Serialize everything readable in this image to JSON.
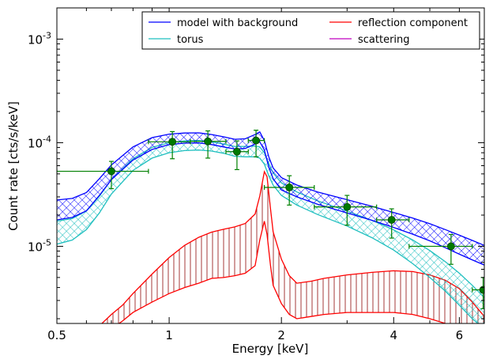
{
  "chart_data": {
    "type": "line",
    "xlabel": "Energy [keV]",
    "ylabel": "Count rate [cts/s/keV]",
    "x_scale": "log",
    "y_scale": "log",
    "xlim": [
      0.5,
      7.0
    ],
    "ylim": [
      1.8e-06,
      0.002
    ],
    "x_ticks": [
      {
        "value": 0.5,
        "label": "0.5"
      },
      {
        "value": 1,
        "label": "1"
      },
      {
        "value": 2,
        "label": "2"
      },
      {
        "value": 4,
        "label": "4"
      },
      {
        "value": 6,
        "label": "6"
      }
    ],
    "y_ticks": [
      {
        "value": 1e-05,
        "base": "10",
        "exp": "-5"
      },
      {
        "value": 0.0001,
        "base": "10",
        "exp": "-4"
      },
      {
        "value": 0.001,
        "base": "10",
        "exp": "-3"
      }
    ],
    "legend": {
      "placement": "top-right",
      "entries": [
        {
          "label": "model with background",
          "color": "#0000ff"
        },
        {
          "label": "reflection component",
          "color": "#ff0000"
        },
        {
          "label": "torus",
          "color": "#1fbfbf"
        },
        {
          "label": "scattering",
          "color": "#bf00bf"
        }
      ]
    },
    "series": [
      {
        "name": "model with background",
        "color": "#0000ff",
        "x": [
          0.5,
          0.55,
          0.6,
          0.65,
          0.7,
          0.8,
          0.9,
          1.0,
          1.1,
          1.2,
          1.3,
          1.4,
          1.5,
          1.6,
          1.7,
          1.75,
          1.8,
          1.85,
          1.9,
          2.0,
          2.2,
          2.5,
          3.0,
          3.5,
          4.0,
          4.5,
          5.0,
          5.5,
          6.0,
          6.5,
          7.0
        ],
        "lower": [
          1.8e-05,
          1.9e-05,
          2.2e-05,
          3.1e-05,
          4.4e-05,
          6.8e-05,
          8.6e-05,
          9.6e-05,
          9.9e-05,
          9.95e-05,
          9.6e-05,
          9.1e-05,
          8.7e-05,
          8.8e-05,
          9.7e-05,
          0.000102,
          8.5e-05,
          5.8e-05,
          4.5e-05,
          3.5e-05,
          3e-05,
          2.55e-05,
          2.1e-05,
          1.78e-05,
          1.52e-05,
          1.31e-05,
          1.13e-05,
          9.7e-06,
          8.4e-06,
          7.4e-06,
          6.6e-06
        ],
        "upper": [
          2.8e-05,
          2.9e-05,
          3.3e-05,
          4.5e-05,
          6.1e-05,
          9.1e-05,
          0.000112,
          0.000121,
          0.000124,
          0.0001245,
          0.00012,
          0.000114,
          0.000108,
          0.000109,
          0.00012,
          0.000127,
          0.000105,
          7.3e-05,
          5.7e-05,
          4.6e-05,
          3.9e-05,
          3.35e-05,
          2.82e-05,
          2.43e-05,
          2.12e-05,
          1.87e-05,
          1.65e-05,
          1.45e-05,
          1.28e-05,
          1.14e-05,
          1.02e-05
        ]
      },
      {
        "name": "torus",
        "color": "#1fbfbf",
        "x": [
          0.5,
          0.55,
          0.6,
          0.65,
          0.7,
          0.8,
          0.9,
          1.0,
          1.1,
          1.2,
          1.3,
          1.4,
          1.5,
          1.6,
          1.7,
          1.75,
          1.8,
          1.85,
          1.9,
          2.0,
          2.2,
          2.5,
          3.0,
          3.5,
          4.0,
          4.5,
          5.0,
          5.5,
          6.0,
          6.5,
          7.0
        ],
        "lower": [
          1.05e-05,
          1.15e-05,
          1.45e-05,
          2.1e-05,
          3.2e-05,
          5.4e-05,
          7.1e-05,
          8e-05,
          8.4e-05,
          8.5e-05,
          8.3e-05,
          7.9e-05,
          7.4e-05,
          7.3e-05,
          7.3e-05,
          7.1e-05,
          6.2e-05,
          4.8e-05,
          3.9e-05,
          3.1e-05,
          2.5e-05,
          2.03e-05,
          1.57e-05,
          1.21e-05,
          9.2e-06,
          6.8e-06,
          5e-06,
          3.7e-06,
          2.7e-06,
          2e-06,
          1.6e-06
        ],
        "upper": [
          1.75e-05,
          1.85e-05,
          2.2e-05,
          3.05e-05,
          4.4e-05,
          7e-05,
          9e-05,
          0.0001,
          0.000104,
          0.000105,
          0.000102,
          9.7e-05,
          9.2e-05,
          9.2e-05,
          9.3e-05,
          9.1e-05,
          8e-05,
          6.3e-05,
          5.1e-05,
          4.1e-05,
          3.35e-05,
          2.75e-05,
          2.19e-05,
          1.78e-05,
          1.44e-05,
          1.15e-05,
          9.1e-06,
          7.1e-06,
          5.5e-06,
          4.2e-06,
          3.2e-06
        ]
      },
      {
        "name": "reflection component",
        "color": "#ff0000",
        "x": [
          0.5,
          0.6,
          0.7,
          0.75,
          0.8,
          0.9,
          1.0,
          1.1,
          1.2,
          1.3,
          1.4,
          1.5,
          1.6,
          1.7,
          1.75,
          1.8,
          1.83,
          1.87,
          1.9,
          2.0,
          2.1,
          2.2,
          2.4,
          2.6,
          3.0,
          3.5,
          4.0,
          4.5,
          5.0,
          5.5,
          6.0,
          6.5,
          7.0
        ],
        "lower": [
          8e-07,
          1.1e-06,
          1.6e-06,
          1.9e-06,
          2.3e-06,
          2.9e-06,
          3.5e-06,
          4e-06,
          4.4e-06,
          4.9e-06,
          5e-06,
          5.2e-06,
          5.5e-06,
          6.5e-06,
          1.15e-05,
          1.75e-05,
          1.3e-05,
          6.5e-06,
          4.2e-06,
          2.8e-06,
          2.2e-06,
          2e-06,
          2.1e-06,
          2.2e-06,
          2.3e-06,
          2.3e-06,
          2.3e-06,
          2.2e-06,
          2e-06,
          1.8e-06,
          1.6e-06,
          1.4e-06,
          1.2e-06
        ],
        "upper": [
          8e-07,
          1.3e-06,
          2.2e-06,
          2.7e-06,
          3.5e-06,
          5.4e-06,
          7.8e-06,
          1.02e-05,
          1.22e-05,
          1.37e-05,
          1.46e-05,
          1.54e-05,
          1.66e-05,
          2.05e-05,
          3.05e-05,
          5.25e-05,
          4.7e-05,
          2.3e-05,
          1.38e-05,
          7.5e-06,
          5.2e-06,
          4.4e-06,
          4.6e-06,
          4.9e-06,
          5.3e-06,
          5.6e-06,
          5.8e-06,
          5.7e-06,
          5.3e-06,
          4.7e-06,
          3.9e-06,
          2.9e-06,
          2.1e-06
        ]
      },
      {
        "name": "data",
        "color": "#008000",
        "type": "errorbar",
        "points": [
          {
            "x": 0.7,
            "y": 5.3e-05,
            "xerr": [
              0.5,
              0.88
            ],
            "yerr": [
              3.6e-05,
              6.6e-05
            ]
          },
          {
            "x": 1.02,
            "y": 0.000102,
            "xerr": [
              0.88,
              1.14
            ],
            "yerr": [
              7e-05,
              0.000128
            ]
          },
          {
            "x": 1.27,
            "y": 0.000103,
            "xerr": [
              1.14,
              1.42
            ],
            "yerr": [
              7.1e-05,
              0.00013
            ]
          },
          {
            "x": 1.52,
            "y": 8.2e-05,
            "xerr": [
              1.42,
              1.63
            ],
            "yerr": [
              5.5e-05,
              0.000104
            ]
          },
          {
            "x": 1.71,
            "y": 0.000105,
            "xerr": [
              1.63,
              1.8
            ],
            "yerr": [
              7.3e-05,
              0.000132
            ]
          },
          {
            "x": 2.1,
            "y": 3.7e-05,
            "xerr": [
              1.8,
              2.45
            ],
            "yerr": [
              2.5e-05,
              4.8e-05
            ]
          },
          {
            "x": 3.0,
            "y": 2.4e-05,
            "xerr": [
              2.45,
              3.6
            ],
            "yerr": [
              1.6e-05,
              3.1e-05
            ]
          },
          {
            "x": 3.95,
            "y": 1.8e-05,
            "xerr": [
              3.6,
              4.4
            ],
            "yerr": [
              1.2e-05,
              2.3e-05
            ]
          },
          {
            "x": 5.7,
            "y": 1e-05,
            "xerr": [
              4.4,
              6.5
            ],
            "yerr": [
              6.7e-06,
              1.3e-05
            ]
          },
          {
            "x": 6.95,
            "y": 3.8e-06,
            "xerr": [
              6.5,
              7.0
            ],
            "yerr": [
              2.5e-06,
              5e-06
            ]
          }
        ]
      }
    ]
  }
}
